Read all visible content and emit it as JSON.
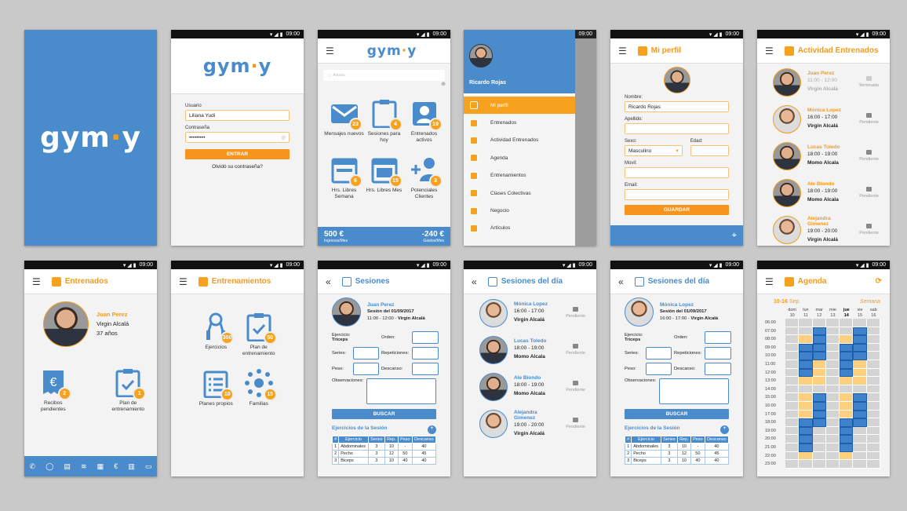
{
  "colors": {
    "blue": "#4a8ccb",
    "orange": "#f7941d",
    "background": "#c9c9c9"
  },
  "status": {
    "time": "09:00"
  },
  "logo": {
    "a": "gym",
    "b": "·",
    "c": "y"
  },
  "login": {
    "user_label": "Usuario",
    "user_value": "Liliana Yudi",
    "pass_label": "Contraseña",
    "pass_value": "•••••••••",
    "button": "ENTRAR",
    "forgot": "Olvidó su contraseña?"
  },
  "dashboard": {
    "avisos_placeholder": "Avisos:",
    "tiles": [
      {
        "icon": "envelope",
        "count": "23",
        "label": "Mensajes nuevos"
      },
      {
        "icon": "clipboard",
        "count": "4",
        "label": "Sesiones para hoy"
      },
      {
        "icon": "contact",
        "count": "19",
        "label": "Entrenados activos"
      },
      {
        "icon": "calendar-week",
        "count": "6",
        "label": "Hrs. Libres Semana"
      },
      {
        "icon": "calendar-month",
        "count": "15",
        "label": "Hrs. Libres Mes"
      },
      {
        "icon": "add-person",
        "count": "3",
        "label": "Potenciales Clientes"
      }
    ],
    "income": "500 €",
    "income_label": "Ingresos/Mes",
    "expense": "-240 €",
    "expense_label": "Gastos/Mes"
  },
  "drawer": {
    "user": "Ricardo Rojas",
    "items": [
      "Mi perfil",
      "Entrenados",
      "Actividad Entrenados",
      "Agenda",
      "Entrenamientos",
      "Clases Colectivas",
      "Negocio",
      "Artículos"
    ],
    "active": 0
  },
  "profile": {
    "title": "Mi perfil",
    "nombre_label": "Nombre:",
    "nombre": "Ricardo Rojas",
    "apellido_label": "Apellido:",
    "sexo_label": "Sexo:",
    "sexo": "Masculino",
    "edad_label": "Edad:",
    "movil_label": "Movil:",
    "email_label": "Email:",
    "button": "GUARDAR"
  },
  "activity": {
    "title": "Actividad Entrenados",
    "items": [
      {
        "name": "Juan Perez",
        "time": "11:00 - 12:00",
        "place": "Virgin Alcalá",
        "status": "Terminada",
        "done": true,
        "male": true
      },
      {
        "name": "Mónica Lopez",
        "time": "16:00 - 17:00",
        "place": "Virgin Alcalá",
        "status": "Pendiente"
      },
      {
        "name": "Lucas Toledo",
        "time": "18:00 - 19:00",
        "place": "Momo Alcala",
        "status": "Pendiente",
        "male": true
      },
      {
        "name": "Ale Biondo",
        "time": "18:00 - 19:00",
        "place": "Momo Alcala",
        "status": "Pendiente",
        "male": true
      },
      {
        "name": "Alejandra Gimenez",
        "time": "19:00 - 20:00",
        "place": "Virgin Alcalá",
        "status": "Pendiente"
      }
    ]
  },
  "trainee": {
    "title": "Entrenados",
    "name": "Juan Perez",
    "place": "Virgin Alcalá",
    "age": "37 años",
    "tiles": [
      {
        "count": "2",
        "label": "Recibos pendientes",
        "icon": "euro-receipt"
      },
      {
        "count": "1",
        "label": "Plan de entrenamiento",
        "icon": "clipboard-check"
      }
    ],
    "bottom_icons": [
      "phone",
      "whatsapp",
      "clipboard",
      "wifi",
      "calendar",
      "euro",
      "document",
      "chat"
    ]
  },
  "trainings": {
    "title": "Entrenamientos",
    "tiles": [
      {
        "count": "350",
        "label": "Ejercicios",
        "icon": "jump-rope"
      },
      {
        "count": "50",
        "label": "Plan de entrenamiento",
        "icon": "clipboard-check"
      },
      {
        "count": "10",
        "label": "Planes propios",
        "icon": "list"
      },
      {
        "count": "15",
        "label": "Familias",
        "icon": "network"
      }
    ]
  },
  "session_form": {
    "ejercicio_label": "Ejercicio:",
    "ejercicio": "Triceps",
    "orden_label": "Orden:",
    "series_label": "Series:",
    "reps_label": "Repeticiones:",
    "peso_label": "Peso:",
    "descanso_label": "Descanso:",
    "obs_label": "Observaciones:",
    "button": "BUSCAR",
    "table_title": "Ejercicios de la Sesión",
    "columns": [
      "#",
      "Ejercicio",
      "Series",
      "Rep.",
      "Peso",
      "Descanso"
    ],
    "rows": [
      [
        "1",
        "Abdominales",
        "3",
        "10",
        "-",
        "40"
      ],
      [
        "2",
        "Pecho",
        "3",
        "12",
        "50",
        "45"
      ],
      [
        "3",
        "Biceps",
        "3",
        "10",
        "40",
        "40"
      ]
    ]
  },
  "sessions": {
    "title": "Sesiones",
    "name": "Juan Perez",
    "date": "Sesión del 01/09/2017",
    "time": "11:00 - 12:00 - ",
    "place": "Virgin Alcalá"
  },
  "sessions_day": {
    "title": "Sesiones del día",
    "items": [
      {
        "name": "Mónica Lopez",
        "time": "16:00 - 17:00",
        "place": "Virgin Alcalá",
        "status": "Pendiente"
      },
      {
        "name": "Lucas Toledo",
        "time": "18:00 - 19:00",
        "place": "Momo Alcala",
        "status": "Pendiente",
        "male": true
      },
      {
        "name": "Ale Biondo",
        "time": "18:00 - 19:00",
        "place": "Momo Alcala",
        "status": "Pendiente",
        "male": true
      },
      {
        "name": "Alejandra Gimenez",
        "time": "19:00 - 20:00",
        "place": "Virgin Alcalá",
        "status": "Pendiente"
      }
    ]
  },
  "sessions2": {
    "title": "Sesiones del día",
    "name": "Mónica Lopez",
    "date": "Sesión del 01/09/2017",
    "time": "16:00 - 17:00 - ",
    "place": "Virgin Alcalá"
  },
  "agenda": {
    "title": "Agenda",
    "range": "10-16",
    "month": "Sep.",
    "view": "Semana",
    "days": [
      [
        "dom",
        "10"
      ],
      [
        "lun",
        "11"
      ],
      [
        "mar",
        "12"
      ],
      [
        "mie",
        "13"
      ],
      [
        "jue",
        "14"
      ],
      [
        "vie",
        "15"
      ],
      [
        "sab",
        "16"
      ]
    ],
    "today": 4,
    "hours": [
      "06:00",
      "07:00",
      "08:00",
      "09:00",
      "10:00",
      "11:00",
      "12:00",
      "13:00",
      "14:00",
      "15:00",
      "16:00",
      "17:00",
      "18:00",
      "19:00",
      "20:00",
      "21:00",
      "22:00",
      "23:00"
    ],
    "legend": {
      "0": "free",
      "1": "available",
      "2": "booked"
    },
    "slots": [
      [
        0,
        0,
        0,
        0,
        0,
        0,
        0,
        0,
        0,
        0,
        0,
        0,
        0,
        0,
        0,
        0,
        0,
        0
      ],
      [
        0,
        0,
        1,
        2,
        2,
        2,
        2,
        1,
        0,
        1,
        1,
        1,
        2,
        2,
        2,
        2,
        1,
        0
      ],
      [
        0,
        2,
        2,
        2,
        2,
        1,
        1,
        1,
        0,
        2,
        2,
        2,
        2,
        0,
        0,
        0,
        0,
        0
      ],
      [
        0,
        0,
        0,
        0,
        0,
        0,
        0,
        0,
        0,
        0,
        0,
        0,
        0,
        0,
        0,
        0,
        0,
        0
      ],
      [
        0,
        0,
        1,
        2,
        2,
        2,
        2,
        1,
        0,
        1,
        1,
        1,
        2,
        2,
        2,
        2,
        1,
        0
      ],
      [
        0,
        2,
        2,
        2,
        2,
        1,
        1,
        1,
        0,
        2,
        2,
        2,
        2,
        0,
        0,
        0,
        0,
        0
      ],
      [
        0,
        0,
        0,
        0,
        0,
        0,
        0,
        0,
        0,
        0,
        0,
        0,
        0,
        0,
        0,
        0,
        0,
        0
      ]
    ]
  }
}
